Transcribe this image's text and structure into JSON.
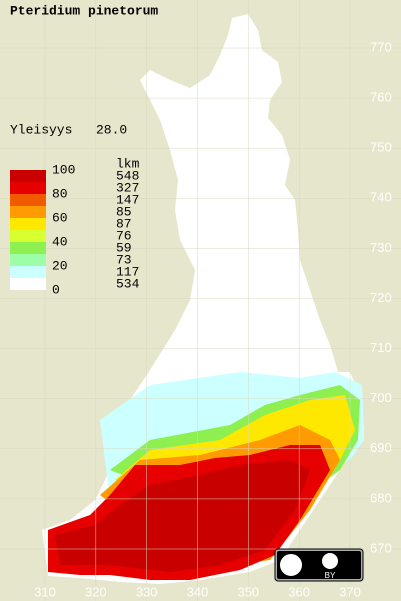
{
  "title": "Pteridium pinetorum",
  "summary": {
    "label": "Yleisyys",
    "value": "28.0"
  },
  "legend": {
    "scale_labels": [
      100,
      80,
      60,
      40,
      20,
      0
    ],
    "colors": [
      "#c80000",
      "#e60000",
      "#f25a00",
      "#ff9a00",
      "#ffe800",
      "#d8ff30",
      "#8ef050",
      "#9cffa8",
      "#ccffff",
      "#ffffff"
    ],
    "count_header": "lkm",
    "counts": [
      548,
      327,
      147,
      85,
      87,
      76,
      59,
      73,
      117,
      534
    ]
  },
  "grid": {
    "northing": [
      770,
      760,
      750,
      740,
      730,
      720,
      710,
      700,
      690,
      680,
      670
    ],
    "easting": [
      310,
      320,
      330,
      340,
      350,
      360,
      370
    ]
  },
  "license": "BY"
}
